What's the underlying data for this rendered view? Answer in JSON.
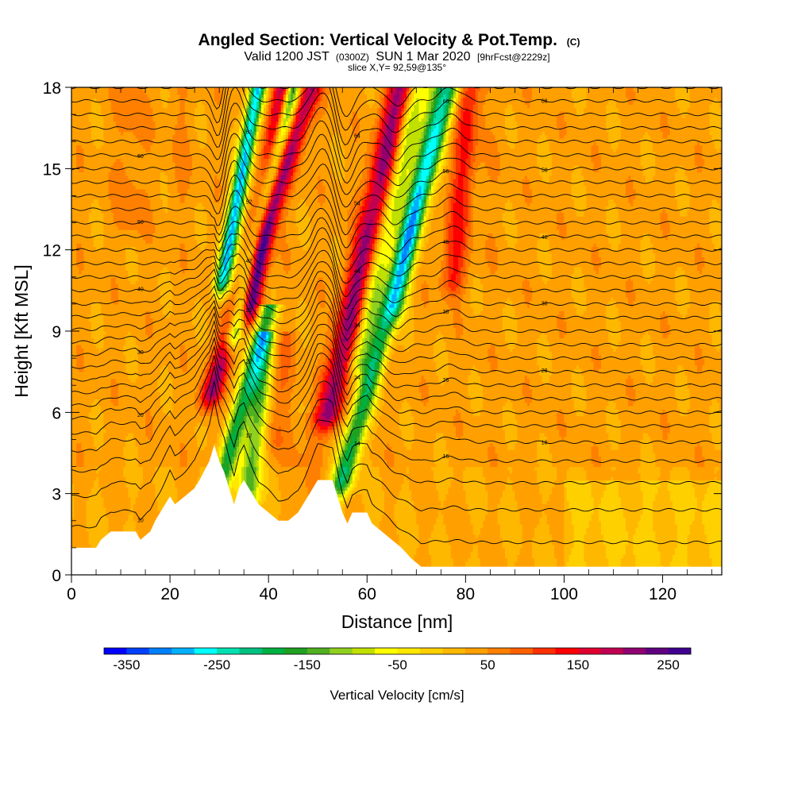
{
  "chart_data": {
    "type": "heatmap",
    "title_main": "Angled Section: Vertical Velocity & Pot.Temp.",
    "title_main_suffix": "(C)",
    "subtitle": {
      "part1": "Valid 1200 JST",
      "part2": "(0300Z)",
      "part3": "SUN 1 Mar 2020",
      "part4": "[9hrFcst@2229z]"
    },
    "slice": "slice X,Y= 92,59@135°",
    "xlabel": "Distance [nm]",
    "ylabel": "Height [Kft MSL]",
    "xlim": [
      0,
      132
    ],
    "ylim": [
      0,
      18
    ],
    "xticks": [
      0,
      20,
      40,
      60,
      80,
      100,
      120
    ],
    "yticks": [
      0,
      3,
      6,
      9,
      12,
      15,
      18
    ],
    "colorbar": {
      "title": "Vertical Velocity [cm/s]",
      "min": -375,
      "max": 275,
      "step": 25,
      "tick_labels": [
        -350,
        -250,
        -150,
        -50,
        50,
        150,
        250
      ],
      "colors": [
        "#0000ff",
        "#0040ff",
        "#0080ff",
        "#00b0ff",
        "#00ffff",
        "#00e0b0",
        "#00c080",
        "#00b040",
        "#20a020",
        "#50b020",
        "#90d020",
        "#c0e000",
        "#ffff00",
        "#ffe800",
        "#ffd000",
        "#ffb800",
        "#ffa000",
        "#ff8000",
        "#ff6000",
        "#ff3000",
        "#ff0000",
        "#e00030",
        "#c00050",
        "#900070",
        "#600080",
        "#400090"
      ]
    },
    "terrain_kft": [
      [
        0,
        1
      ],
      [
        5,
        1
      ],
      [
        6,
        1.3
      ],
      [
        8,
        1.6
      ],
      [
        13,
        1.6
      ],
      [
        14,
        1.3
      ],
      [
        16,
        1.6
      ],
      [
        17,
        2
      ],
      [
        18,
        2.3
      ],
      [
        19,
        2.6
      ],
      [
        20,
        2.9
      ],
      [
        21,
        2.6
      ],
      [
        23,
        2.9
      ],
      [
        25,
        3.2
      ],
      [
        26,
        3.5
      ],
      [
        28,
        4.2
      ],
      [
        29,
        4.8
      ],
      [
        30,
        4.2
      ],
      [
        31,
        3.8
      ],
      [
        32,
        3.2
      ],
      [
        33,
        2.6
      ],
      [
        34,
        3.2
      ],
      [
        35,
        3.5
      ],
      [
        36,
        3.2
      ],
      [
        37,
        2.9
      ],
      [
        38,
        2.6
      ],
      [
        40,
        2.3
      ],
      [
        42,
        2
      ],
      [
        44,
        2
      ],
      [
        46,
        2.3
      ],
      [
        48,
        2.9
      ],
      [
        50,
        3.5
      ],
      [
        53,
        3.5
      ],
      [
        54,
        2.9
      ],
      [
        55,
        2.3
      ],
      [
        56,
        1.9
      ],
      [
        57,
        2.3
      ],
      [
        60,
        2.3
      ],
      [
        61,
        1.9
      ],
      [
        63,
        1.6
      ],
      [
        65,
        1.3
      ],
      [
        67,
        1
      ],
      [
        69,
        0.6
      ],
      [
        71,
        0.3
      ],
      [
        132,
        0.3
      ]
    ],
    "vertical_velocity_cells": [
      {
        "x": 28.5,
        "halfwidth": 2.2,
        "y0": 6.8,
        "y1": 18,
        "lean": 0.18,
        "value": 200
      },
      {
        "x": 30.8,
        "halfwidth": 1.6,
        "y0": 11,
        "y1": 18,
        "lean": 0.1,
        "value": -280
      },
      {
        "x": 33.2,
        "halfwidth": 1.6,
        "y0": 9,
        "y1": 18,
        "lean": 0.13,
        "value": -230
      },
      {
        "x": 36.5,
        "halfwidth": 2.0,
        "y0": 10,
        "y1": 18,
        "lean": 0.08,
        "value": 230
      },
      {
        "x": 30.5,
        "halfwidth": 2.0,
        "y0": 3.5,
        "y1": 10,
        "lean": 0.15,
        "value": -170
      },
      {
        "x": 36.0,
        "halfwidth": 2.2,
        "y0": 3.0,
        "y1": 9,
        "lean": 0.06,
        "value": -140
      },
      {
        "x": 41.0,
        "halfwidth": 2.5,
        "y0": 5.0,
        "y1": 9,
        "lean": 0.05,
        "value": 80
      },
      {
        "x": 52.3,
        "halfwidth": 2.6,
        "y0": 6.0,
        "y1": 18,
        "lean": 0.12,
        "value": 210
      },
      {
        "x": 55.0,
        "halfwidth": 2.2,
        "y0": 3.5,
        "y1": 18,
        "lean": 0.15,
        "value": -190
      },
      {
        "x": 58.5,
        "halfwidth": 2.0,
        "y0": 8.0,
        "y1": 18,
        "lean": 0.12,
        "value": -90
      },
      {
        "x": 66.0,
        "halfwidth": 2.2,
        "y0": 10.0,
        "y1": 18,
        "lean": 0.1,
        "value": -80
      },
      {
        "x": 77.5,
        "halfwidth": 2.5,
        "y0": 11.0,
        "y1": 18,
        "lean": 0.05,
        "value": 130
      },
      {
        "x": 84.0,
        "halfwidth": 3.0,
        "y0": 12.0,
        "y1": 18,
        "lean": 0.05,
        "value": 40
      },
      {
        "x": 12.0,
        "halfwidth": 3.0,
        "y0": 13.0,
        "y1": 18,
        "lean": 0.0,
        "value": 60
      },
      {
        "x": 22.0,
        "halfwidth": 2.5,
        "y0": 14.0,
        "y1": 18,
        "lean": 0.0,
        "value": 50
      },
      {
        "x": 48.0,
        "halfwidth": 3.0,
        "y0": 1.0,
        "y1": 6,
        "lean": 0.0,
        "value": 60
      }
    ],
    "isentrope_base_kft": [
      1.2,
      2.4,
      3.4,
      4.2,
      4.9,
      5.5,
      6.0,
      6.5,
      7.0,
      7.5,
      8.0,
      8.5,
      9.0,
      9.5,
      10.0,
      10.5,
      11.0,
      11.5,
      12.0,
      12.5,
      13.0,
      13.5,
      14.0,
      14.5,
      15.0,
      15.5,
      16.0,
      16.5,
      17.0,
      17.5,
      18.0
    ],
    "isentrope_labels": [
      "10",
      "12",
      "14",
      "16",
      "18",
      "20",
      "22",
      "24",
      "26",
      "28",
      "30",
      "32",
      "34",
      "36",
      "38",
      "40",
      "42",
      "44",
      "46",
      "48",
      "50",
      "52",
      "54",
      "56",
      "58",
      "60",
      "62",
      "64",
      "66",
      "68",
      "70"
    ]
  }
}
